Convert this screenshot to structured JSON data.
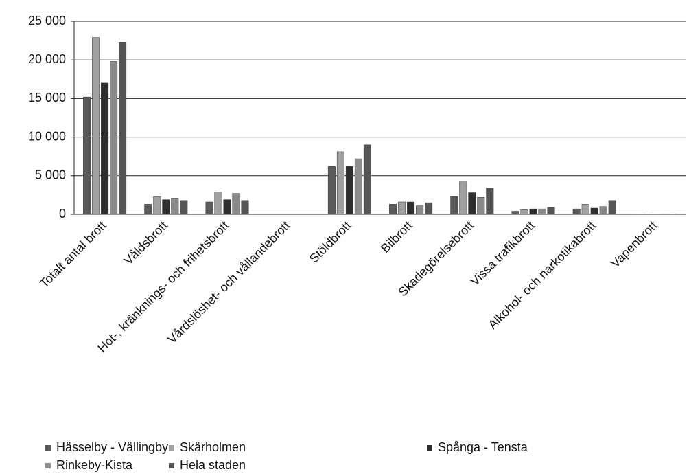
{
  "chart_data": {
    "type": "bar",
    "categories": [
      "Totalt antal brott",
      "Våldsbrott",
      "Hot-, kränknings- och frihetsbrott",
      "Vårdslöshet- och vållandebrott",
      "Stöldbrott",
      "Bilbrott",
      "Skadegörelsebrott",
      "Vissa trafikbrott",
      "Alkohol- och narkotikabrott",
      "Vapenbrott"
    ],
    "series": [
      {
        "name": "Hässelby - Vällingby",
        "color": "#5a5a5a",
        "values": [
          15200,
          1300,
          1600,
          0,
          6200,
          1300,
          2300,
          400,
          700,
          20
        ]
      },
      {
        "name": "Skärholmen",
        "color": "#a0a0a0",
        "values": [
          22900,
          2300,
          2900,
          0,
          8100,
          1600,
          4200,
          600,
          1300,
          50
        ]
      },
      {
        "name": "Spånga - Tensta",
        "color": "#2e2e2e",
        "values": [
          17000,
          1900,
          1900,
          0,
          6200,
          1600,
          2800,
          700,
          800,
          20
        ]
      },
      {
        "name": "Rinkeby-Kista",
        "color": "#8a8a8a",
        "values": [
          19800,
          2100,
          2700,
          0,
          7200,
          1100,
          2200,
          700,
          1000,
          30
        ]
      },
      {
        "name": "Hela staden",
        "color": "#555555",
        "values": [
          22300,
          1800,
          1800,
          0,
          9000,
          1500,
          3400,
          900,
          1800,
          40
        ]
      }
    ],
    "ylim": [
      0,
      25000
    ],
    "yticks": [
      0,
      {
        "value": 5000,
        "label": "5 000"
      },
      {
        "value": 10000,
        "label": "10 000"
      },
      {
        "value": 15000,
        "label": "15 000"
      },
      {
        "value": 20000,
        "label": "20 000"
      },
      {
        "value": 25000,
        "label": "25 000"
      }
    ],
    "grid": true,
    "legend": "bottom"
  }
}
